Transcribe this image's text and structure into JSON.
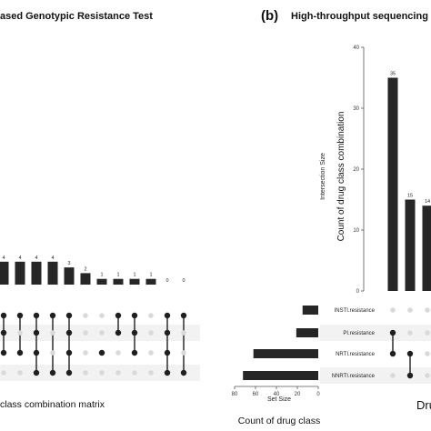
{
  "panel_a": {
    "title": "ased Genotypic Resistance Test",
    "caption": "class combination matrix"
  },
  "panel_b": {
    "letter": "(b)",
    "title": "High-throughput sequencing",
    "caption": "Dru"
  },
  "colors": {
    "bar": "#262626",
    "dot_on": "#1f1f1f",
    "dot_off": "#d9d9d9",
    "stripe": "#f2f2f2",
    "axis": "#555555"
  },
  "chart_data": [
    {
      "type": "bar",
      "panel": "a",
      "values": [
        4,
        4,
        4,
        4,
        3,
        2,
        1,
        1,
        1,
        1,
        0,
        0
      ],
      "matrix_rows": 4,
      "membership": [
        [
          0,
          1,
          2
        ],
        [
          0,
          2
        ],
        [
          0,
          1,
          2,
          3
        ],
        [
          0,
          3
        ],
        [
          0,
          1,
          2,
          3
        ],
        [],
        [
          2
        ],
        [
          0,
          1
        ],
        [
          0,
          1,
          2
        ],
        [],
        [
          0,
          1,
          2,
          3
        ],
        [
          0,
          3
        ]
      ]
    },
    {
      "type": "bar",
      "panel": "b",
      "values": [
        35,
        15,
        14
      ],
      "ylabel": "Count of drug class combination",
      "ylabel_small": "Intersection Size",
      "yticks": [
        0,
        10,
        20,
        30,
        40
      ],
      "ylim": [
        0,
        40
      ],
      "sets": [
        {
          "name": "INSTI.resistance",
          "size": 15
        },
        {
          "name": "PI.resistance",
          "size": 21
        },
        {
          "name": "NRTI.resistance",
          "size": 62
        },
        {
          "name": "NNRTI.resistance",
          "size": 72
        }
      ],
      "set_size_ticks": [
        80,
        60,
        40,
        20,
        0
      ],
      "set_size_xlim": [
        0,
        80
      ],
      "set_size_label": "Set Size",
      "set_size_caption": "Count of drug class",
      "membership": [
        [
          1,
          2
        ],
        [
          2,
          3
        ],
        []
      ]
    }
  ]
}
